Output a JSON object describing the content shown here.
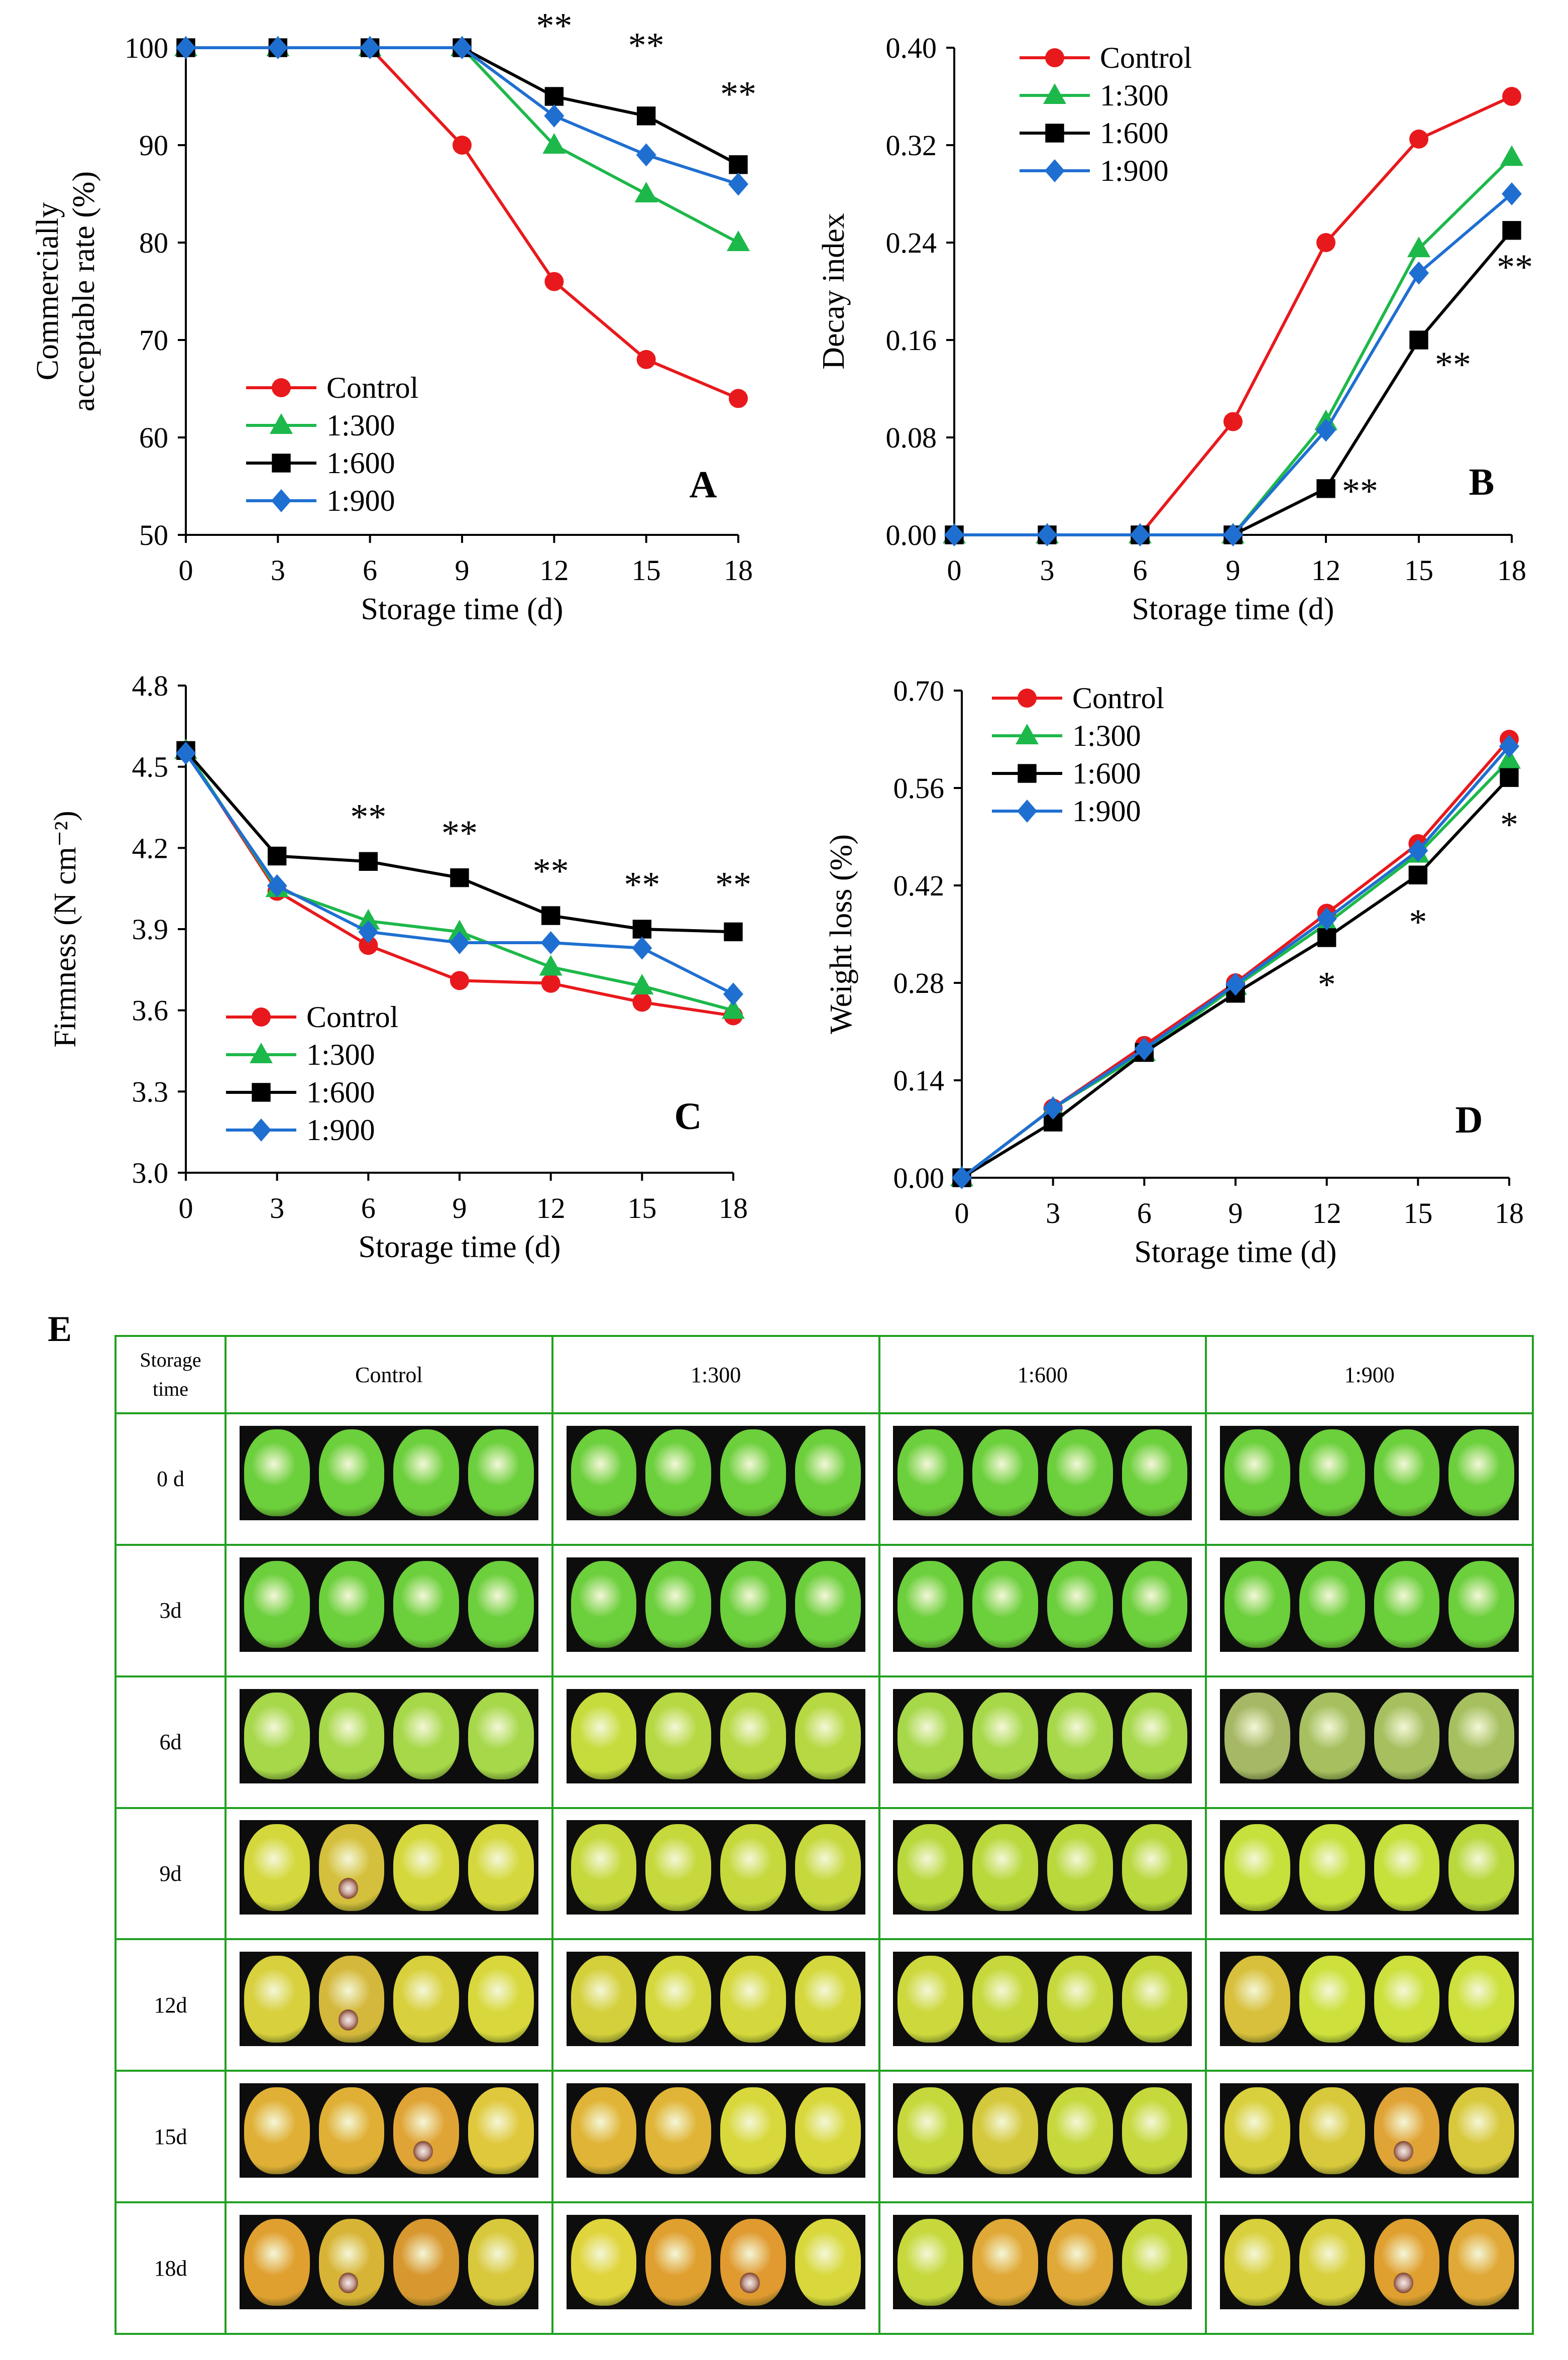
{
  "chart_data": [
    {
      "panel": "A",
      "type": "line",
      "ylabel_lines": [
        "Commercially",
        "acceptable rate (%)"
      ],
      "xlabel": "Storage time (d)",
      "x": [
        0,
        3,
        6,
        9,
        12,
        15,
        18
      ],
      "ylim": [
        50,
        100
      ],
      "yticks": [
        "50",
        "60",
        "70",
        "80",
        "90",
        "100"
      ],
      "ytick_values": [
        50,
        60,
        70,
        80,
        90,
        100
      ],
      "series": [
        {
          "name": "Control",
          "color": "#e8191c",
          "marker": "circle",
          "values": [
            100,
            100,
            100,
            90,
            76,
            68,
            64
          ]
        },
        {
          "name": "1:300",
          "color": "#1db84a",
          "marker": "triangle",
          "values": [
            100,
            100,
            100,
            100,
            90,
            85,
            80
          ]
        },
        {
          "name": "1:600",
          "color": "#000000",
          "marker": "square",
          "values": [
            100,
            100,
            100,
            100,
            95,
            93,
            88
          ]
        },
        {
          "name": "1:900",
          "color": "#1f6fd1",
          "marker": "diamond",
          "values": [
            100,
            100,
            100,
            100,
            93,
            89,
            86
          ]
        }
      ],
      "annotations": [
        {
          "text": "**",
          "x": 12,
          "y": 101
        },
        {
          "text": "**",
          "x": 15,
          "y": 99
        },
        {
          "text": "**",
          "x": 18,
          "y": 94
        }
      ]
    },
    {
      "panel": "B",
      "type": "line",
      "ylabel_lines": [
        "Decay index"
      ],
      "xlabel": "Storage time (d)",
      "x": [
        0,
        3,
        6,
        9,
        12,
        15,
        18
      ],
      "ylim": [
        0,
        0.4
      ],
      "yticks": [
        "0.00",
        "0.08",
        "0.16",
        "0.24",
        "0.32",
        "0.40"
      ],
      "ytick_values": [
        0,
        0.08,
        0.16,
        0.24,
        0.32,
        0.4
      ],
      "series": [
        {
          "name": "Control",
          "color": "#e8191c",
          "marker": "circle",
          "values": [
            0,
            0,
            0,
            0.093,
            0.24,
            0.325,
            0.36
          ]
        },
        {
          "name": "1:300",
          "color": "#1db84a",
          "marker": "triangle",
          "values": [
            0,
            0,
            0,
            0,
            0.093,
            0.235,
            0.31
          ]
        },
        {
          "name": "1:600",
          "color": "#000000",
          "marker": "square",
          "values": [
            0,
            0,
            0,
            0,
            0.038,
            0.16,
            0.25
          ]
        },
        {
          "name": "1:900",
          "color": "#1f6fd1",
          "marker": "diamond",
          "values": [
            0,
            0,
            0,
            0,
            0.086,
            0.215,
            0.28
          ]
        }
      ],
      "annotations": [
        {
          "text": "**",
          "x": 13.1,
          "y": 0.026
        },
        {
          "text": "**",
          "x": 16.1,
          "y": 0.13
        },
        {
          "text": "**",
          "x": 18.1,
          "y": 0.21
        }
      ]
    },
    {
      "panel": "C",
      "type": "line",
      "ylabel_lines": [
        "Firmness (N cm⁻²)"
      ],
      "xlabel": "Storage time (d)",
      "x": [
        0,
        3,
        6,
        9,
        12,
        15,
        18
      ],
      "ylim": [
        3.0,
        4.8
      ],
      "yticks": [
        "3.0",
        "3.3",
        "3.6",
        "3.9",
        "4.2",
        "4.5",
        "4.8"
      ],
      "ytick_values": [
        3.0,
        3.3,
        3.6,
        3.9,
        4.2,
        4.5,
        4.8
      ],
      "series": [
        {
          "name": "Control",
          "color": "#e8191c",
          "marker": "circle",
          "values": [
            4.56,
            4.04,
            3.84,
            3.71,
            3.7,
            3.63,
            3.58
          ]
        },
        {
          "name": "1:300",
          "color": "#1db84a",
          "marker": "triangle",
          "values": [
            4.56,
            4.05,
            3.93,
            3.89,
            3.76,
            3.69,
            3.6
          ]
        },
        {
          "name": "1:600",
          "color": "#000000",
          "marker": "square",
          "values": [
            4.56,
            4.17,
            4.15,
            4.09,
            3.95,
            3.9,
            3.89
          ]
        },
        {
          "name": "1:900",
          "color": "#1f6fd1",
          "marker": "diamond",
          "values": [
            4.55,
            4.06,
            3.89,
            3.85,
            3.85,
            3.83,
            3.66
          ]
        }
      ],
      "annotations": [
        {
          "text": "**",
          "x": 6,
          "y": 4.27
        },
        {
          "text": "**",
          "x": 9,
          "y": 4.21
        },
        {
          "text": "**",
          "x": 12,
          "y": 4.07
        },
        {
          "text": "**",
          "x": 15,
          "y": 4.02
        },
        {
          "text": "**",
          "x": 18,
          "y": 4.02
        }
      ]
    },
    {
      "panel": "D",
      "type": "line",
      "ylabel_lines": [
        "Weight loss (%)"
      ],
      "xlabel": "Storage time (d)",
      "x": [
        0,
        3,
        6,
        9,
        12,
        15,
        18
      ],
      "ylim": [
        0,
        0.7
      ],
      "yticks": [
        "0.00",
        "0.14",
        "0.28",
        "0.42",
        "0.56",
        "0.70"
      ],
      "ytick_values": [
        0,
        0.14,
        0.28,
        0.42,
        0.56,
        0.7
      ],
      "series": [
        {
          "name": "Control",
          "color": "#e8191c",
          "marker": "circle",
          "values": [
            0,
            0.1,
            0.19,
            0.28,
            0.38,
            0.48,
            0.63
          ]
        },
        {
          "name": "1:300",
          "color": "#1db84a",
          "marker": "triangle",
          "values": [
            0,
            0.1,
            0.18,
            0.275,
            0.365,
            0.465,
            0.6
          ]
        },
        {
          "name": "1:600",
          "color": "#000000",
          "marker": "square",
          "values": [
            0,
            0.08,
            0.18,
            0.265,
            0.345,
            0.435,
            0.575
          ]
        },
        {
          "name": "1:900",
          "color": "#1f6fd1",
          "marker": "diamond",
          "values": [
            0,
            0.1,
            0.185,
            0.278,
            0.372,
            0.47,
            0.62
          ]
        }
      ],
      "annotations": [
        {
          "text": "*",
          "x": 12,
          "y": 0.26
        },
        {
          "text": "*",
          "x": 15,
          "y": 0.35
        },
        {
          "text": "*",
          "x": 18,
          "y": 0.49
        }
      ]
    }
  ],
  "panel_e": {
    "label": "E",
    "corner_header": [
      "Storage",
      "time"
    ],
    "columns": [
      "Control",
      "1:300",
      "1:600",
      "1:900"
    ],
    "rows": [
      {
        "label": "0 d",
        "fruit": [
          [
            "#6ccf3c",
            "#6ccf3c",
            "#6ccf3c",
            "#6ccf3c"
          ],
          [
            "#6ccf3c",
            "#6ccf3c",
            "#6ccf3c",
            "#6ccf3c"
          ],
          [
            "#6ccf3c",
            "#6ccf3c",
            "#6ccf3c",
            "#6ccf3c"
          ],
          [
            "#6ccf3c",
            "#6ccf3c",
            "#6ccf3c",
            "#6ccf3c"
          ]
        ]
      },
      {
        "label": "3d",
        "fruit": [
          [
            "#6ccf3c",
            "#6ccf3c",
            "#6ccf3c",
            "#6ccf3c"
          ],
          [
            "#6ccf3c",
            "#6ccf3c",
            "#6ccf3c",
            "#6ccf3c"
          ],
          [
            "#6ccf3c",
            "#6ccf3c",
            "#6ccf3c",
            "#6ccf3c"
          ],
          [
            "#6ccf3c",
            "#6ccf3c",
            "#6ccf3c",
            "#6ccf3c"
          ]
        ]
      },
      {
        "label": "6d",
        "fruit": [
          [
            "#a6d84a",
            "#a6d84a",
            "#a6d84a",
            "#a6d84a"
          ],
          [
            "#c6dc3c",
            "#b6d842",
            "#b6d842",
            "#b6d842"
          ],
          [
            "#a6d84a",
            "#a6d84a",
            "#a6d84a",
            "#a6d84a"
          ],
          [
            "#a6b866",
            "#a6c060",
            "#a6c060",
            "#a6c060"
          ]
        ]
      },
      {
        "label": "9d",
        "fruit": [
          [
            "#d4d83c",
            "#d4c03c",
            "#d4d83c",
            "#d4d83c"
          ],
          [
            "#c6d83c",
            "#c6d83c",
            "#c6d83c",
            "#c6d83c"
          ],
          [
            "#b8d83c",
            "#b8d83c",
            "#b8d83c",
            "#b8d83c"
          ],
          [
            "#c6e03c",
            "#c6e03c",
            "#c6e03c",
            "#b8d83c"
          ]
        ]
      },
      {
        "label": "12d",
        "fruit": [
          [
            "#d8d03c",
            "#d4b83c",
            "#d8d03c",
            "#d8d83c"
          ],
          [
            "#d4d03c",
            "#d4d83c",
            "#d4d83c",
            "#d4d83c"
          ],
          [
            "#cdd83c",
            "#c6d83c",
            "#c6d83c",
            "#c6d83c"
          ],
          [
            "#d8c03c",
            "#cde03c",
            "#cde03c",
            "#cde03c"
          ]
        ]
      },
      {
        "label": "15d",
        "fruit": [
          [
            "#e0b036",
            "#e0b036",
            "#e0a436",
            "#e0c83c"
          ],
          [
            "#e0b436",
            "#e0b436",
            "#d8d83c",
            "#d8d83c"
          ],
          [
            "#c6d83c",
            "#d4c83c",
            "#c6d83c",
            "#c6d83c"
          ],
          [
            "#d8d03c",
            "#d8c83c",
            "#e0a436",
            "#d8c83c"
          ]
        ]
      },
      {
        "label": "18d",
        "fruit": [
          [
            "#e0a030",
            "#d8b436",
            "#d89830",
            "#d8c83c"
          ],
          [
            "#e0d43c",
            "#e0a030",
            "#e09a30",
            "#d8d83c"
          ],
          [
            "#c6d83c",
            "#e0a836",
            "#e0a836",
            "#c6d83c"
          ],
          [
            "#d8d03c",
            "#d8d03c",
            "#e0a030",
            "#e0a836"
          ]
        ]
      }
    ]
  }
}
